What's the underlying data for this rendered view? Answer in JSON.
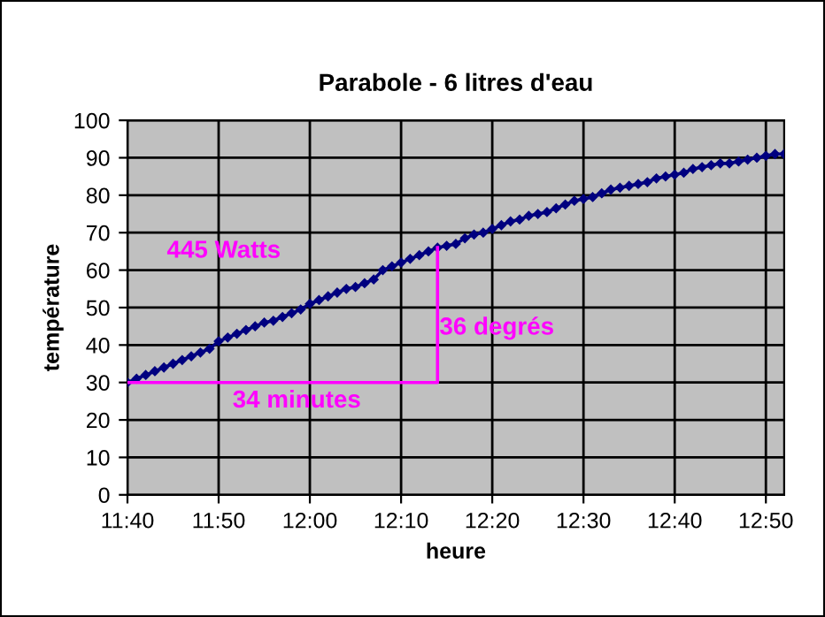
{
  "chart_data": {
    "type": "line",
    "title": "Parabole - 6 litres d'eau",
    "xlabel": "heure",
    "ylabel": "température",
    "series": [
      {
        "color": "#000080",
        "marker": "diamond",
        "x": [
          11.6667,
          11.6833,
          11.7,
          11.7167,
          11.7333,
          11.75,
          11.7667,
          11.7833,
          11.8,
          11.8167,
          11.8333,
          11.85,
          11.8667,
          11.8833,
          11.9,
          11.9167,
          11.9333,
          11.95,
          11.9667,
          11.9833,
          12,
          12.0167,
          12.0333,
          12.05,
          12.0667,
          12.0833,
          12.1,
          12.1167,
          12.1333,
          12.15,
          12.1667,
          12.1833,
          12.2,
          12.2167,
          12.2333,
          12.25,
          12.2667,
          12.2833,
          12.3,
          12.3167,
          12.3333,
          12.35,
          12.3667,
          12.3833,
          12.4,
          12.4167,
          12.4333,
          12.45,
          12.4667,
          12.4833,
          12.5,
          12.5167,
          12.5333,
          12.55,
          12.5667,
          12.5833,
          12.6,
          12.6167,
          12.6333,
          12.65,
          12.6667,
          12.6833,
          12.7,
          12.7167,
          12.7333,
          12.75,
          12.7667,
          12.7833,
          12.8,
          12.8167,
          12.8333,
          12.85,
          12.8667
        ],
        "values": [
          30,
          31,
          32,
          33,
          34,
          35,
          36,
          37,
          38,
          39,
          41,
          42,
          43,
          44,
          45,
          46,
          46.5,
          47.5,
          48.5,
          49.5,
          51,
          52,
          53,
          54,
          55,
          55.5,
          56.5,
          57.5,
          60,
          61,
          62,
          63,
          64,
          65,
          66,
          66.5,
          67,
          68.5,
          69.5,
          70,
          71,
          72,
          73,
          73.5,
          74.5,
          75,
          75.5,
          76.5,
          77.5,
          78.5,
          79,
          79.5,
          80.5,
          81.5,
          82,
          82.5,
          83,
          83.5,
          84.5,
          85,
          85.5,
          86,
          87,
          87.5,
          88,
          88.5,
          88.5,
          89,
          89.5,
          90,
          90.5,
          91,
          91
        ]
      },
      {
        "color": "#ff00ff",
        "marker": "none",
        "x": [
          11.6667,
          12.2333,
          12.2333
        ],
        "values": [
          30,
          30,
          66
        ]
      }
    ],
    "annotations": [
      "445 Watts",
      "36 degrés",
      "34 minutes"
    ],
    "xlim": [
      11.6667,
      12.8667
    ],
    "xticks": [
      {
        "value": 11.6667,
        "label": "11:40"
      },
      {
        "value": 11.8333,
        "label": "11:50"
      },
      {
        "value": 12,
        "label": "12:00"
      },
      {
        "value": 12.1667,
        "label": "12:10"
      },
      {
        "value": 12.3333,
        "label": "12:20"
      },
      {
        "value": 12.5,
        "label": "12:30"
      },
      {
        "value": 12.6667,
        "label": "12:40"
      },
      {
        "value": 12.8333,
        "label": "12:50"
      }
    ],
    "ylim": [
      0,
      100
    ],
    "yticks": [
      0,
      10,
      20,
      30,
      40,
      50,
      60,
      70,
      80,
      90,
      100
    ],
    "grid": true,
    "line_style": "solid",
    "legend": false
  }
}
